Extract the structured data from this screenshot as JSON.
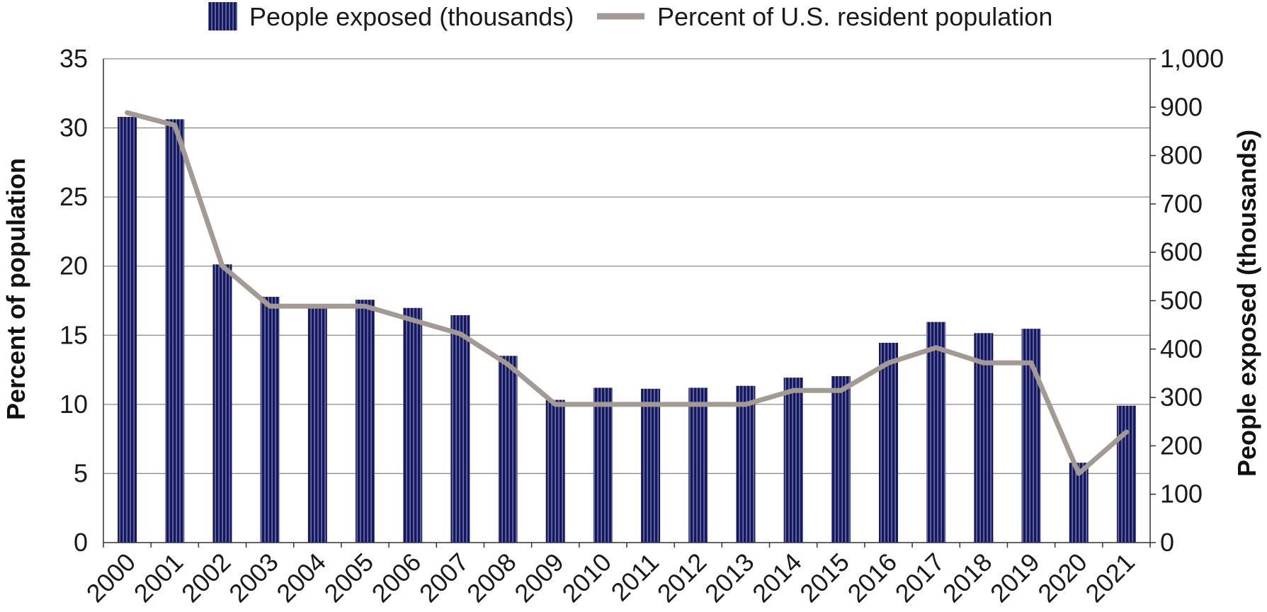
{
  "chart_data": {
    "type": "bar",
    "categories": [
      "2000",
      "2001",
      "2002",
      "2003",
      "2004",
      "2005",
      "2006",
      "2007",
      "2008",
      "2009",
      "2010",
      "2011",
      "2012",
      "2013",
      "2014",
      "2015",
      "2016",
      "2017",
      "2018",
      "2019",
      "2020",
      "2021"
    ],
    "series": [
      {
        "name": "People exposed (thousands)",
        "type": "bar",
        "axis": "right",
        "values": [
          880,
          875,
          575,
          508,
          490,
          502,
          485,
          470,
          386,
          295,
          320,
          318,
          320,
          324,
          341,
          344,
          413,
          456,
          433,
          442,
          165,
          283
        ]
      },
      {
        "name": "Percent of U.S. resident population",
        "type": "line",
        "axis": "left",
        "values": [
          31.1,
          30.2,
          20.0,
          17.1,
          17.1,
          17.1,
          16.1,
          15.1,
          12.9,
          10.0,
          10.0,
          10.0,
          10.0,
          10.0,
          11.0,
          11.0,
          13.0,
          14.1,
          13.0,
          13.0,
          5.0,
          8.0
        ]
      }
    ],
    "left_axis": {
      "label": "Percent of population",
      "ylim": [
        0,
        35
      ],
      "ticks": [
        "0",
        "5",
        "10",
        "15",
        "20",
        "25",
        "30",
        "35"
      ]
    },
    "right_axis": {
      "label": "People exposed (thousands)",
      "ylim": [
        0,
        1000
      ],
      "ticks": [
        "0",
        "100",
        "200",
        "300",
        "400",
        "500",
        "600",
        "700",
        "800",
        "900",
        "1,000"
      ]
    },
    "grid": true,
    "legend_position": "top",
    "colors": {
      "bar": "#16185e",
      "bar_stripe": "#8b8fc4",
      "line": "#a39a94",
      "grid": "#8a8a8a"
    }
  }
}
